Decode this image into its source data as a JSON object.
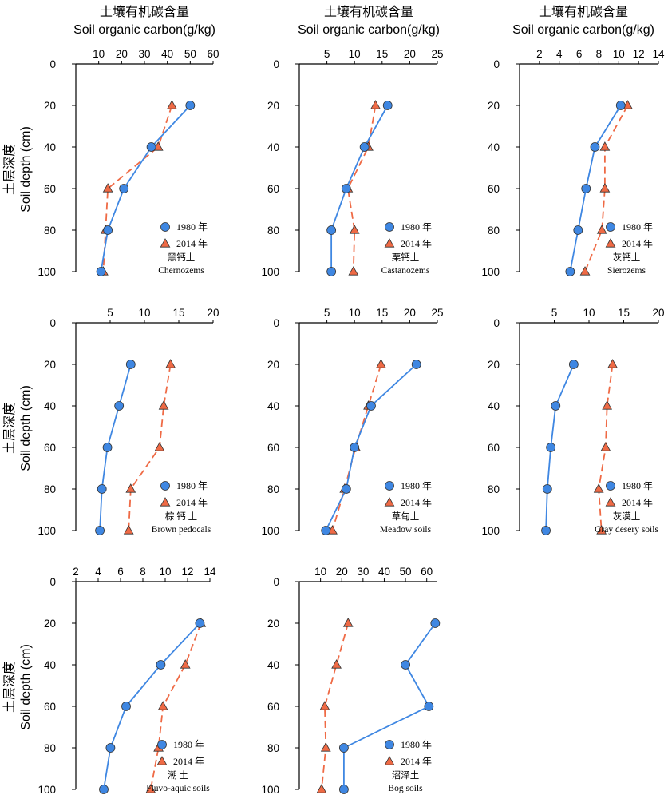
{
  "figure": {
    "column_titles": [
      {
        "cn": "土壤有机碳含量",
        "en": "Soil organic carbon(g/kg)"
      },
      {
        "cn": "土壤有机碳含量",
        "en": "Soil organic carbon(g/kg)"
      },
      {
        "cn": "土壤有机碳含量",
        "en": "Soil organic carbon(g/kg)"
      }
    ],
    "row_ylabels": [
      {
        "cn": "土层深度",
        "en": "Soil depth (cm)"
      },
      {
        "cn": "土层深度",
        "en": "Soil depth (cm)"
      },
      {
        "cn": "土层深度",
        "en": "Soil depth (cm)"
      }
    ],
    "legend": {
      "series_1980": "1980 年",
      "series_2014": "2014 年"
    },
    "colors": {
      "series_1980": "#3f87e2",
      "series_2014": "#ef6a45",
      "marker_edge": "#333333"
    }
  },
  "chart_data": [
    {
      "type": "line",
      "label_cn": "黑钙土",
      "label_en": "Chernozems",
      "y_ticks": [
        0,
        20,
        40,
        60,
        80,
        100
      ],
      "xlim": [
        0,
        60
      ],
      "x_ticks": [
        10,
        20,
        30,
        40,
        50,
        60
      ],
      "ylim": [
        0,
        100
      ],
      "y_inverted": true,
      "series": [
        {
          "name": "1980 年",
          "style": "solid",
          "marker": "circle",
          "points": [
            [
              50,
              20
            ],
            [
              33,
              40
            ],
            [
              21,
              60
            ],
            [
              14,
              80
            ],
            [
              11,
              100
            ]
          ]
        },
        {
          "name": "2014 年",
          "style": "dashed",
          "marker": "triangle",
          "points": [
            [
              42,
              20
            ],
            [
              36,
              40
            ],
            [
              14,
              60
            ],
            [
              13,
              80
            ],
            [
              12,
              100
            ]
          ]
        }
      ]
    },
    {
      "type": "line",
      "label_cn": "栗钙土",
      "label_en": "Castanozems",
      "y_ticks": [
        0,
        20,
        40,
        60,
        80,
        100
      ],
      "xlim": [
        0,
        25
      ],
      "x_ticks": [
        5,
        10,
        15,
        20,
        25
      ],
      "ylim": [
        0,
        100
      ],
      "y_inverted": true,
      "series": [
        {
          "name": "1980 年",
          "style": "solid",
          "marker": "circle",
          "points": [
            [
              16,
              20
            ],
            [
              11.8,
              40
            ],
            [
              8.5,
              60
            ],
            [
              5.8,
              80
            ],
            [
              5.8,
              100
            ]
          ]
        },
        {
          "name": "2014 年",
          "style": "dashed",
          "marker": "triangle",
          "points": [
            [
              13.8,
              20
            ],
            [
              12.5,
              40
            ],
            [
              8.8,
              60
            ],
            [
              10,
              80
            ],
            [
              9.8,
              100
            ]
          ]
        }
      ]
    },
    {
      "type": "line",
      "label_cn": "灰钙土",
      "label_en": "Sierozems",
      "y_ticks": [
        0,
        20,
        40,
        60,
        80,
        100
      ],
      "xlim": [
        0,
        14
      ],
      "x_ticks": [
        2,
        4,
        6,
        8,
        10,
        12,
        14
      ],
      "ylim": [
        0,
        100
      ],
      "y_inverted": true,
      "series": [
        {
          "name": "1980 年",
          "style": "solid",
          "marker": "circle",
          "points": [
            [
              10.2,
              20
            ],
            [
              7.6,
              40
            ],
            [
              6.7,
              60
            ],
            [
              5.9,
              80
            ],
            [
              5.1,
              100
            ]
          ]
        },
        {
          "name": "2014 年",
          "style": "dashed",
          "marker": "triangle",
          "points": [
            [
              10.9,
              20
            ],
            [
              8.6,
              40
            ],
            [
              8.6,
              60
            ],
            [
              8.3,
              80
            ],
            [
              6.6,
              100
            ]
          ]
        }
      ]
    },
    {
      "type": "line",
      "label_cn": "棕 钙 土",
      "label_en": "Brown pedocals",
      "y_ticks": [
        0,
        20,
        40,
        60,
        80,
        100
      ],
      "xlim": [
        0,
        20
      ],
      "x_ticks": [
        5,
        10,
        15,
        20
      ],
      "ylim": [
        0,
        100
      ],
      "y_inverted": true,
      "series": [
        {
          "name": "1980 年",
          "style": "solid",
          "marker": "circle",
          "points": [
            [
              8,
              20
            ],
            [
              6.3,
              40
            ],
            [
              4.6,
              60
            ],
            [
              3.8,
              80
            ],
            [
              3.5,
              100
            ]
          ]
        },
        {
          "name": "2014 年",
          "style": "dashed",
          "marker": "triangle",
          "points": [
            [
              13.8,
              20
            ],
            [
              12.8,
              40
            ],
            [
              12.2,
              60
            ],
            [
              8,
              80
            ],
            [
              7.7,
              100
            ]
          ]
        }
      ]
    },
    {
      "type": "line",
      "label_cn": "草甸土",
      "label_en": "Meadow soils",
      "y_ticks": [
        0,
        20,
        40,
        60,
        80,
        100
      ],
      "xlim": [
        0,
        25
      ],
      "x_ticks": [
        5,
        10,
        15,
        20,
        25
      ],
      "ylim": [
        0,
        100
      ],
      "y_inverted": true,
      "series": [
        {
          "name": "1980 年",
          "style": "solid",
          "marker": "circle",
          "points": [
            [
              21.2,
              20
            ],
            [
              13,
              40
            ],
            [
              10,
              60
            ],
            [
              8.5,
              80
            ],
            [
              4.8,
              100
            ]
          ]
        },
        {
          "name": "2014 年",
          "style": "dashed",
          "marker": "triangle",
          "points": [
            [
              14.8,
              20
            ],
            [
              12.5,
              40
            ],
            [
              10.2,
              60
            ],
            [
              8.2,
              80
            ],
            [
              6,
              100
            ]
          ]
        }
      ]
    },
    {
      "type": "line",
      "label_cn": "灰漠土",
      "label_en": "Gray desery soils",
      "y_ticks": [
        0,
        20,
        40,
        60,
        80,
        100
      ],
      "xlim": [
        0,
        20
      ],
      "x_ticks": [
        5,
        10,
        15,
        20
      ],
      "ylim": [
        0,
        100
      ],
      "y_inverted": true,
      "series": [
        {
          "name": "1980 年",
          "style": "solid",
          "marker": "circle",
          "points": [
            [
              7.8,
              20
            ],
            [
              5.2,
              40
            ],
            [
              4.5,
              60
            ],
            [
              4,
              80
            ],
            [
              3.8,
              100
            ]
          ]
        },
        {
          "name": "2014 年",
          "style": "dashed",
          "marker": "triangle",
          "points": [
            [
              13.4,
              20
            ],
            [
              12.6,
              40
            ],
            [
              12.4,
              60
            ],
            [
              11.4,
              80
            ],
            [
              11.8,
              100
            ]
          ]
        }
      ]
    },
    {
      "type": "line",
      "label_cn": "潮 土",
      "label_en": "Fluvo-aquic soils",
      "y_ticks": [
        0,
        20,
        40,
        60,
        80,
        100
      ],
      "xlim": [
        2,
        14
      ],
      "x_ticks": [
        2,
        4,
        6,
        8,
        10,
        12,
        14
      ],
      "ylim": [
        0,
        100
      ],
      "y_inverted": true,
      "series": [
        {
          "name": "1980 年",
          "style": "solid",
          "marker": "circle",
          "points": [
            [
              13.1,
              20
            ],
            [
              9.6,
              40
            ],
            [
              6.5,
              60
            ],
            [
              5.1,
              80
            ],
            [
              4.5,
              100
            ]
          ]
        },
        {
          "name": "2014 年",
          "style": "dashed",
          "marker": "triangle",
          "points": [
            [
              13.2,
              20
            ],
            [
              11.8,
              40
            ],
            [
              9.8,
              60
            ],
            [
              9.4,
              80
            ],
            [
              8.7,
              100
            ]
          ]
        }
      ]
    },
    {
      "type": "line",
      "label_cn": "沼泽土",
      "label_en": "Bog soils",
      "y_ticks": [
        0,
        20,
        40,
        60,
        80,
        100
      ],
      "xlim": [
        0,
        65
      ],
      "x_ticks": [
        10,
        20,
        30,
        40,
        50,
        60
      ],
      "ylim": [
        0,
        100
      ],
      "y_inverted": true,
      "series": [
        {
          "name": "1980 年",
          "style": "solid",
          "marker": "circle",
          "points": [
            [
              64,
              20
            ],
            [
              50,
              40
            ],
            [
              61,
              60
            ],
            [
              21,
              80
            ],
            [
              21,
              100
            ]
          ]
        },
        {
          "name": "2014 年",
          "style": "dashed",
          "marker": "triangle",
          "points": [
            [
              23,
              20
            ],
            [
              17.5,
              40
            ],
            [
              12,
              60
            ],
            [
              12.5,
              80
            ],
            [
              10.5,
              100
            ]
          ]
        }
      ]
    }
  ]
}
